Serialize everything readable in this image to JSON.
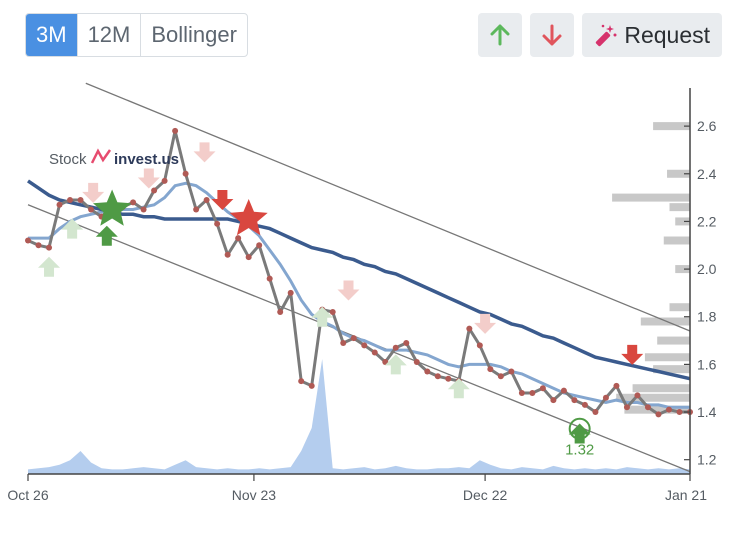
{
  "toolbar": {
    "range_buttons": [
      "3M",
      "12M",
      "Bollinger"
    ],
    "active_range": "3M",
    "up_icon": "arrow-up-icon",
    "down_icon": "arrow-down-icon",
    "request_label": "Request",
    "request_icon": "magic-wand-icon"
  },
  "watermark": {
    "part1": "Stock",
    "part2": "invest.us"
  },
  "colors": {
    "price": "#7a7a7a",
    "price_dot": "#b05a55",
    "ma_long": "#3b5b8e",
    "ma_short": "#84a6cf",
    "channel": "#777777",
    "volume": "#b4cdee",
    "buy": "#4f9a45",
    "sell": "#d9473f",
    "buy_faint": "#d3e6cf",
    "sell_faint": "#f3cdca",
    "histogram": "#c8c8c8"
  },
  "chart_data": {
    "type": "line",
    "x_ticks": [
      "Oct 26",
      "Nov 23",
      "Dec 22",
      "Jan 21"
    ],
    "y_ticks": [
      "1.2",
      "1.4",
      "1.6",
      "1.8",
      "2.0",
      "2.2",
      "2.4",
      "2.6"
    ],
    "ylim": [
      1.14,
      2.76
    ],
    "x_range": [
      0,
      63
    ],
    "price": [
      2.12,
      2.1,
      2.09,
      2.27,
      2.29,
      2.29,
      2.25,
      2.22,
      2.26,
      2.26,
      2.28,
      2.25,
      2.33,
      2.37,
      2.58,
      2.4,
      2.25,
      2.29,
      2.19,
      2.06,
      2.13,
      2.05,
      2.1,
      1.96,
      1.82,
      1.9,
      1.53,
      1.51,
      1.83,
      1.82,
      1.69,
      1.71,
      1.68,
      1.65,
      1.61,
      1.67,
      1.69,
      1.61,
      1.57,
      1.55,
      1.54,
      1.53,
      1.75,
      1.68,
      1.58,
      1.55,
      1.57,
      1.48,
      1.48,
      1.5,
      1.45,
      1.49,
      1.45,
      1.43,
      1.4,
      1.46,
      1.51,
      1.42,
      1.47,
      1.42,
      1.39,
      1.41,
      1.4,
      1.4
    ],
    "ma_long": [
      2.37,
      2.34,
      2.31,
      2.29,
      2.28,
      2.27,
      2.26,
      2.25,
      2.24,
      2.23,
      2.23,
      2.22,
      2.22,
      2.21,
      2.21,
      2.21,
      2.21,
      2.21,
      2.21,
      2.21,
      2.2,
      2.19,
      2.18,
      2.17,
      2.15,
      2.13,
      2.11,
      2.09,
      2.08,
      2.07,
      2.05,
      2.04,
      2.02,
      2.01,
      1.99,
      1.98,
      1.96,
      1.94,
      1.92,
      1.9,
      1.88,
      1.86,
      1.84,
      1.82,
      1.81,
      1.79,
      1.77,
      1.76,
      1.74,
      1.72,
      1.71,
      1.69,
      1.67,
      1.65,
      1.63,
      1.62,
      1.61,
      1.6,
      1.59,
      1.58,
      1.57,
      1.56,
      1.55,
      1.54
    ],
    "ma_short": [
      2.13,
      2.13,
      2.13,
      2.17,
      2.2,
      2.22,
      2.23,
      2.24,
      2.24,
      2.25,
      2.25,
      2.26,
      2.27,
      2.3,
      2.35,
      2.36,
      2.35,
      2.32,
      2.28,
      2.24,
      2.21,
      2.18,
      2.14,
      2.08,
      2.02,
      1.95,
      1.87,
      1.81,
      1.78,
      1.76,
      1.73,
      1.71,
      1.7,
      1.68,
      1.66,
      1.66,
      1.66,
      1.65,
      1.64,
      1.62,
      1.6,
      1.59,
      1.6,
      1.6,
      1.6,
      1.59,
      1.57,
      1.56,
      1.54,
      1.52,
      1.5,
      1.48,
      1.47,
      1.46,
      1.45,
      1.44,
      1.45,
      1.44,
      1.44,
      1.43,
      1.43,
      1.42,
      1.42,
      1.42
    ],
    "volume": [
      0.04,
      0.05,
      0.06,
      0.08,
      0.12,
      0.2,
      0.1,
      0.05,
      0.04,
      0.04,
      0.05,
      0.06,
      0.05,
      0.04,
      0.08,
      0.12,
      0.06,
      0.05,
      0.04,
      0.05,
      0.04,
      0.04,
      0.05,
      0.04,
      0.05,
      0.06,
      0.2,
      0.4,
      1.0,
      0.05,
      0.04,
      0.05,
      0.06,
      0.04,
      0.05,
      0.07,
      0.05,
      0.04,
      0.04,
      0.05,
      0.05,
      0.06,
      0.05,
      0.12,
      0.08,
      0.05,
      0.04,
      0.06,
      0.05,
      0.04,
      0.07,
      0.05,
      0.04,
      0.05,
      0.04,
      0.05,
      0.04,
      0.06,
      0.05,
      0.04,
      0.05,
      0.04,
      0.05,
      0.04
    ],
    "channel_upper": [
      [
        5.5,
        2.78
      ],
      [
        63,
        1.74
      ]
    ],
    "channel_lower": [
      [
        0,
        2.27
      ],
      [
        63,
        1.15
      ]
    ],
    "signals_buy_strong": [
      [
        8,
        2.25
      ],
      [
        7.5,
        2.14
      ],
      [
        52.5,
        1.31
      ]
    ],
    "signals_sell_strong": [
      [
        18.5,
        2.29
      ],
      [
        21,
        2.21
      ],
      [
        57.5,
        1.64
      ]
    ],
    "signals_buy_faint": [
      [
        2,
        2.01
      ],
      [
        4.2,
        2.17
      ],
      [
        28,
        1.8
      ],
      [
        35,
        1.6
      ],
      [
        41,
        1.5
      ]
    ],
    "signals_sell_faint": [
      [
        6.2,
        2.32
      ],
      [
        11.5,
        2.38
      ],
      [
        16.8,
        2.49
      ],
      [
        30.5,
        1.91
      ],
      [
        43.5,
        1.77
      ]
    ],
    "circle_annotation": {
      "x": 52.5,
      "y": 1.33,
      "label": "1.32"
    },
    "price_histogram": [
      [
        2.6,
        0.45
      ],
      [
        2.4,
        0.28
      ],
      [
        2.3,
        0.95
      ],
      [
        2.26,
        0.25
      ],
      [
        2.2,
        0.18
      ],
      [
        2.12,
        0.32
      ],
      [
        2.0,
        0.18
      ],
      [
        1.84,
        0.25
      ],
      [
        1.78,
        0.6
      ],
      [
        1.7,
        0.4
      ],
      [
        1.63,
        0.55
      ],
      [
        1.58,
        0.45
      ],
      [
        1.5,
        0.7
      ],
      [
        1.46,
        0.9
      ],
      [
        1.41,
        0.8
      ]
    ]
  }
}
